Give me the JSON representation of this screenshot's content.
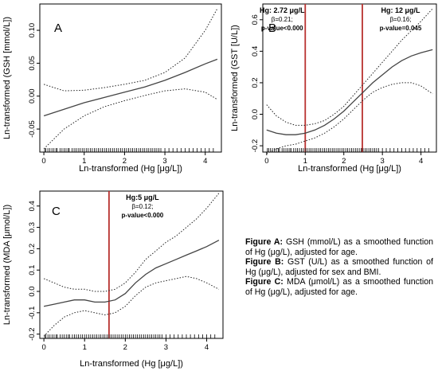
{
  "chart_data": [
    {
      "type": "line",
      "panel": "A",
      "xlabel": "Ln-transformed (Hg [μg/L])",
      "ylabel": "Ln-transformed (GSH [mmol/L])",
      "xlim": [
        -0.1,
        4.4
      ],
      "ylim": [
        -0.085,
        0.14
      ],
      "xticks": [
        "0",
        "1",
        "2",
        "3",
        "4"
      ],
      "yticks": [
        "-0.05",
        "0.00",
        "0.05",
        "0.10"
      ],
      "series": [
        {
          "style": "solid",
          "x": [
            0,
            0.5,
            1,
            1.5,
            2,
            2.5,
            3,
            3.5,
            4,
            4.3
          ],
          "y": [
            -0.03,
            -0.02,
            -0.01,
            -0.002,
            0.006,
            0.014,
            0.024,
            0.036,
            0.049,
            0.056
          ]
        },
        {
          "style": "dotted-upper",
          "x": [
            0,
            0.5,
            1,
            1.5,
            2,
            2.5,
            3,
            3.5,
            4,
            4.3
          ],
          "y": [
            0.018,
            0.008,
            0.009,
            0.013,
            0.018,
            0.024,
            0.036,
            0.058,
            0.1,
            0.133
          ]
        },
        {
          "style": "dotted-lower",
          "x": [
            0,
            0.5,
            1,
            1.5,
            2,
            2.5,
            3,
            3.5,
            4,
            4.3
          ],
          "y": [
            -0.08,
            -0.05,
            -0.03,
            -0.016,
            -0.007,
            0.001,
            0.008,
            0.011,
            0.006,
            -0.005
          ]
        }
      ],
      "rug_x": [
        0.02,
        0.05,
        0.1,
        0.15,
        0.2,
        0.25,
        0.3,
        0.33,
        0.4,
        0.45,
        0.5,
        0.55,
        0.6,
        0.63,
        0.7,
        0.75,
        0.8,
        0.85,
        0.9,
        0.95,
        1.0,
        1.05,
        1.1,
        1.15,
        1.2,
        1.25,
        1.3,
        1.35,
        1.4,
        1.45,
        1.5,
        1.55,
        1.6,
        1.65,
        1.7,
        1.75,
        1.8,
        1.85,
        1.9,
        1.95,
        2.0,
        2.05,
        2.1,
        2.15,
        2.2,
        2.25,
        2.3,
        2.35,
        2.4,
        2.45,
        2.5,
        2.55,
        2.6,
        2.65,
        2.7,
        2.75,
        2.8,
        2.85,
        2.9,
        3.0,
        3.1,
        3.2,
        3.3,
        3.4,
        3.5,
        3.6,
        3.7,
        3.8,
        3.9,
        4.0,
        4.1,
        4.2
      ]
    },
    {
      "type": "line",
      "panel": "B",
      "xlabel": "Ln-transformed (Hg [μg/L])",
      "ylabel": "Ln-transformed (GST [U/L])",
      "xlim": [
        -0.1,
        4.4
      ],
      "ylim": [
        -0.24,
        0.7
      ],
      "xticks": [
        "0",
        "1",
        "2",
        "3",
        "4"
      ],
      "yticks": [
        "-0.2",
        "0.0",
        "0.2",
        "0.4",
        "0.6"
      ],
      "series": [
        {
          "style": "solid",
          "x": [
            0,
            0.25,
            0.5,
            0.75,
            1,
            1.25,
            1.5,
            1.75,
            2,
            2.25,
            2.5,
            2.75,
            3,
            3.25,
            3.5,
            3.75,
            4,
            4.3
          ],
          "y": [
            -0.1,
            -0.12,
            -0.13,
            -0.13,
            -0.12,
            -0.1,
            -0.07,
            -0.03,
            0.02,
            0.08,
            0.14,
            0.2,
            0.25,
            0.3,
            0.34,
            0.37,
            0.39,
            0.41
          ]
        },
        {
          "style": "dotted-upper",
          "x": [
            0,
            0.25,
            0.5,
            0.75,
            1,
            1.25,
            1.5,
            1.75,
            2,
            2.25,
            2.5,
            2.75,
            3,
            3.25,
            3.5,
            3.75,
            4,
            4.3
          ],
          "y": [
            0.06,
            -0.01,
            -0.05,
            -0.07,
            -0.07,
            -0.06,
            -0.04,
            0.0,
            0.05,
            0.12,
            0.19,
            0.26,
            0.33,
            0.4,
            0.47,
            0.53,
            0.59,
            0.67
          ]
        },
        {
          "style": "dotted-lower",
          "x": [
            0,
            0.25,
            0.5,
            0.75,
            1,
            1.25,
            1.5,
            1.75,
            2,
            2.25,
            2.5,
            2.75,
            3,
            3.25,
            3.5,
            3.75,
            4,
            4.3
          ],
          "y": [
            -0.25,
            -0.22,
            -0.2,
            -0.19,
            -0.17,
            -0.15,
            -0.12,
            -0.08,
            -0.03,
            0.03,
            0.09,
            0.14,
            0.17,
            0.19,
            0.2,
            0.2,
            0.18,
            0.13
          ]
        }
      ],
      "reference_lines": [
        {
          "x": 1.0,
          "color": "#b8312f",
          "label_lines": [
            "Hg: 2.72 μg/L",
            "β=0.21;",
            "p-value<0.000"
          ]
        },
        {
          "x": 2.48,
          "color": "#b8312f",
          "label_lines": [
            "Hg: 12 μg/L",
            "β=0.16;",
            "p-value=0.045"
          ]
        }
      ],
      "rug_x": [
        0.02,
        0.05,
        0.1,
        0.15,
        0.2,
        0.25,
        0.3,
        0.33,
        0.4,
        0.45,
        0.5,
        0.55,
        0.6,
        0.63,
        0.7,
        0.75,
        0.8,
        0.85,
        0.9,
        0.95,
        1.0,
        1.05,
        1.1,
        1.15,
        1.2,
        1.25,
        1.3,
        1.35,
        1.4,
        1.45,
        1.5,
        1.55,
        1.6,
        1.65,
        1.7,
        1.75,
        1.8,
        1.85,
        1.9,
        1.95,
        2.0,
        2.05,
        2.1,
        2.15,
        2.2,
        2.25,
        2.3,
        2.35,
        2.4,
        2.45,
        2.5,
        2.55,
        2.6,
        2.65,
        2.7,
        2.75,
        2.8,
        2.85,
        2.9,
        3.0,
        3.1,
        3.2,
        3.3,
        3.4,
        3.5,
        3.6,
        3.7,
        3.8,
        3.9,
        4.0,
        4.1,
        4.2
      ]
    },
    {
      "type": "line",
      "panel": "C",
      "xlabel": "Ln-transformed (Hg [μg/L])",
      "ylabel": "Ln-transformed (MDA [μmol/L])",
      "xlim": [
        -0.1,
        4.4
      ],
      "ylim": [
        -0.22,
        0.47
      ],
      "xticks": [
        "0",
        "1",
        "2",
        "3",
        "4"
      ],
      "yticks": [
        "-0.2",
        "-0.1",
        "0.0",
        "0.1",
        "0.2",
        "0.3",
        "0.4"
      ],
      "series": [
        {
          "style": "solid",
          "x": [
            0,
            0.25,
            0.5,
            0.75,
            1,
            1.25,
            1.5,
            1.75,
            2,
            2.25,
            2.5,
            2.75,
            3,
            3.25,
            3.5,
            3.75,
            4,
            4.3
          ],
          "y": [
            -0.07,
            -0.06,
            -0.05,
            -0.04,
            -0.04,
            -0.05,
            -0.05,
            -0.04,
            -0.01,
            0.04,
            0.08,
            0.11,
            0.13,
            0.15,
            0.17,
            0.19,
            0.21,
            0.24
          ]
        },
        {
          "style": "dotted-upper",
          "x": [
            0,
            0.25,
            0.5,
            0.75,
            1,
            1.25,
            1.5,
            1.75,
            2,
            2.25,
            2.5,
            2.75,
            3,
            3.25,
            3.5,
            3.75,
            4,
            4.3
          ],
          "y": [
            0.06,
            0.04,
            0.02,
            0.01,
            0.01,
            0.0,
            0.0,
            0.01,
            0.04,
            0.09,
            0.15,
            0.19,
            0.23,
            0.26,
            0.3,
            0.34,
            0.39,
            0.46
          ]
        },
        {
          "style": "dotted-lower",
          "x": [
            0,
            0.25,
            0.5,
            0.75,
            1,
            1.25,
            1.5,
            1.75,
            2,
            2.25,
            2.5,
            2.75,
            3,
            3.25,
            3.5,
            3.75,
            4,
            4.3
          ],
          "y": [
            -0.21,
            -0.16,
            -0.12,
            -0.1,
            -0.09,
            -0.1,
            -0.11,
            -0.1,
            -0.07,
            -0.02,
            0.02,
            0.04,
            0.05,
            0.06,
            0.07,
            0.06,
            0.04,
            0.01
          ]
        }
      ],
      "reference_lines": [
        {
          "x": 1.6,
          "color": "#b8312f",
          "label_lines": [
            "Hg:5 μg/L",
            "β=0.12;",
            "p-value<0.000"
          ]
        }
      ],
      "rug_x": [
        0.02,
        0.05,
        0.1,
        0.15,
        0.2,
        0.25,
        0.3,
        0.33,
        0.4,
        0.45,
        0.5,
        0.55,
        0.6,
        0.63,
        0.7,
        0.75,
        0.8,
        0.85,
        0.9,
        0.95,
        1.0,
        1.05,
        1.1,
        1.15,
        1.2,
        1.25,
        1.3,
        1.35,
        1.4,
        1.45,
        1.5,
        1.55,
        1.6,
        1.65,
        1.7,
        1.75,
        1.8,
        1.85,
        1.9,
        1.95,
        2.0,
        2.05,
        2.1,
        2.15,
        2.2,
        2.25,
        2.3,
        2.35,
        2.4,
        2.45,
        2.5,
        2.55,
        2.6,
        2.65,
        2.7,
        2.75,
        2.8,
        2.85,
        2.9,
        3.0,
        3.1,
        3.2,
        3.3,
        3.4,
        3.5,
        3.6,
        3.7,
        3.8,
        3.9,
        4.0,
        4.1,
        4.2
      ]
    }
  ],
  "caption": {
    "a_label": "Figure A:",
    "a_text": " GSH (mmol/L)  as a smoothed function of Hg (μg/L), adjusted for age.",
    "b_label": "Figure B:",
    "b_text": " GST (U/L)  as a smoothed function of Hg (μg/L), adjusted for sex and BMI.",
    "c_label": "Figure C:",
    "c_text": " MDA (μmol/L)  as a smoothed function of Hg (μg/L), adjusted for age."
  }
}
